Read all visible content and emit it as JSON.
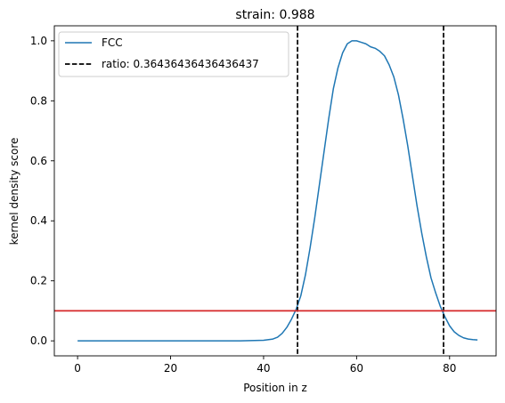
{
  "chart_data": {
    "type": "line",
    "title": "strain: 0.988",
    "xlabel": "Position in z",
    "ylabel": "kernel density score",
    "xlim": [
      -5,
      90
    ],
    "ylim": [
      -0.05,
      1.05
    ],
    "xticks": [
      0,
      20,
      40,
      60,
      80
    ],
    "yticks": [
      0.0,
      0.2,
      0.4,
      0.6,
      0.8,
      1.0
    ],
    "xtick_labels": [
      "0",
      "20",
      "40",
      "60",
      "80"
    ],
    "ytick_labels": [
      "0.0",
      "0.2",
      "0.4",
      "0.6",
      "0.8",
      "1.0"
    ],
    "grid": false,
    "legend_position": "top-left",
    "series": [
      {
        "name": "FCC",
        "color": "#1f77b4",
        "x": [
          0,
          5,
          10,
          15,
          20,
          25,
          30,
          35,
          40,
          42,
          43,
          44,
          45,
          46,
          47,
          48,
          49,
          50,
          51,
          52,
          53,
          54,
          55,
          56,
          57,
          58,
          59,
          60,
          61,
          62,
          63,
          64,
          65,
          66,
          67,
          68,
          69,
          70,
          71,
          72,
          73,
          74,
          75,
          76,
          77,
          78,
          79,
          80,
          81,
          82,
          83,
          84,
          85,
          86
        ],
        "y": [
          0.0,
          0.0,
          0.0,
          0.0,
          0.0,
          0.0,
          0.0,
          0.0,
          0.002,
          0.006,
          0.012,
          0.025,
          0.045,
          0.072,
          0.105,
          0.15,
          0.22,
          0.31,
          0.41,
          0.52,
          0.63,
          0.74,
          0.84,
          0.91,
          0.96,
          0.99,
          1.0,
          1.0,
          0.995,
          0.99,
          0.98,
          0.975,
          0.965,
          0.95,
          0.92,
          0.88,
          0.82,
          0.74,
          0.65,
          0.55,
          0.45,
          0.36,
          0.28,
          0.21,
          0.16,
          0.115,
          0.08,
          0.05,
          0.03,
          0.018,
          0.01,
          0.006,
          0.004,
          0.003
        ]
      }
    ],
    "vlines": [
      {
        "name": "ratio: 0.36436436436436437",
        "color": "#000000",
        "style": "dashed",
        "x": [
          47.3,
          78.7
        ]
      }
    ],
    "hlines": [
      {
        "color": "#d62728",
        "style": "solid",
        "y": 0.1
      }
    ],
    "legend": [
      {
        "label": "FCC",
        "color": "#1f77b4",
        "style": "solid"
      },
      {
        "label": "ratio: 0.36436436436436437",
        "color": "#000000",
        "style": "dashed"
      }
    ]
  }
}
